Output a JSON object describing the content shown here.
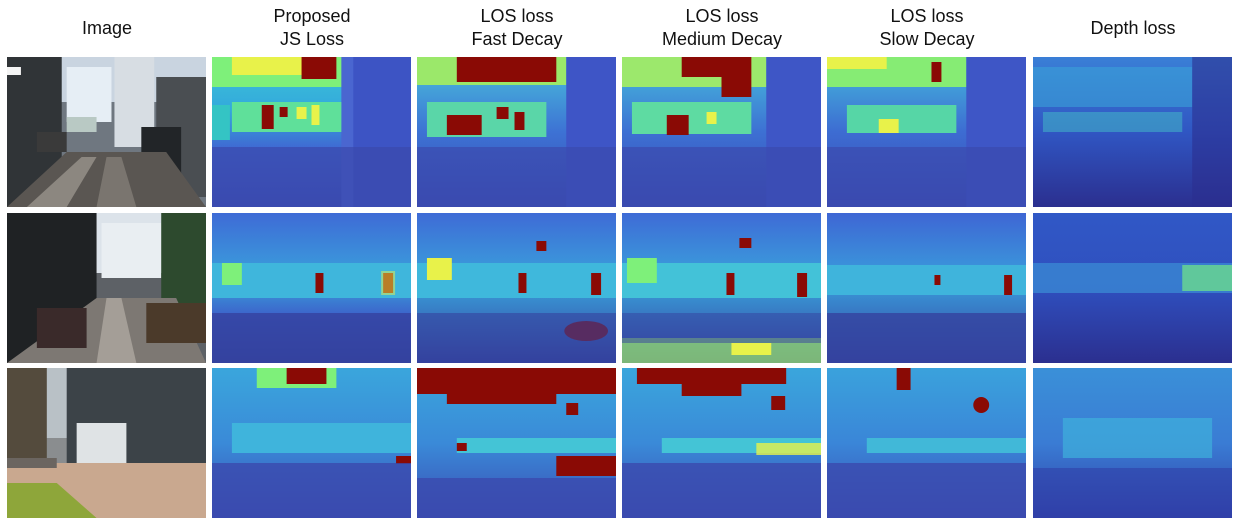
{
  "figure": {
    "columns": [
      {
        "key": "image",
        "lines": [
          "Image"
        ]
      },
      {
        "key": "js",
        "lines": [
          "Proposed",
          "JS Loss"
        ]
      },
      {
        "key": "los_fast",
        "lines": [
          "LOS loss",
          "Fast Decay"
        ]
      },
      {
        "key": "los_medium",
        "lines": [
          "LOS loss",
          "Medium Decay"
        ]
      },
      {
        "key": "los_slow",
        "lines": [
          "LOS loss",
          "Slow Decay"
        ]
      },
      {
        "key": "depth",
        "lines": [
          "Depth loss"
        ]
      }
    ],
    "rows": 3
  },
  "colors": {
    "deep_blue": "#2b2f8f",
    "mid_blue": "#3d5bd6",
    "cyan": "#35c2e6",
    "green": "#7ef07a",
    "yellow": "#f2f23a",
    "dark_red": "#8a0a05"
  }
}
